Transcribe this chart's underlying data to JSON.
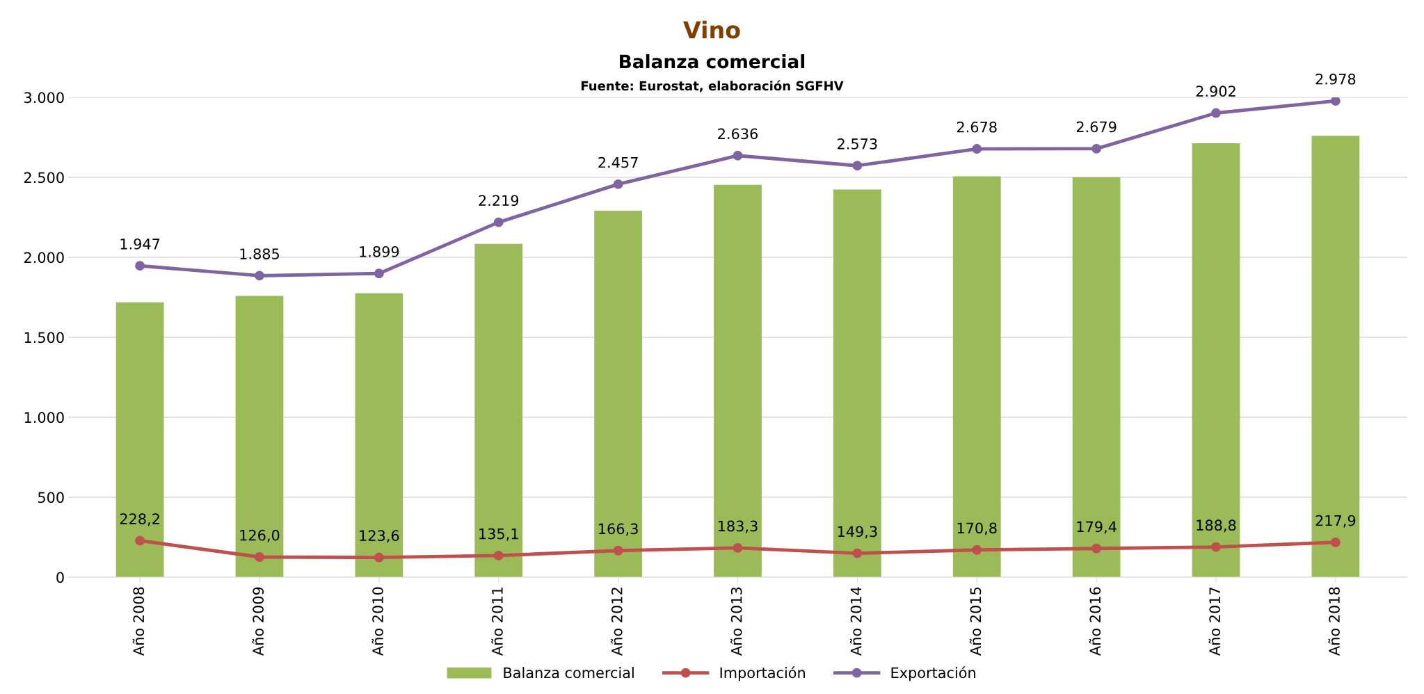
{
  "chart_data": {
    "type": "bar",
    "title": "Vino",
    "subtitle": "Balanza comercial",
    "annotations": [
      "Fuente: Eurostat, elaboración SGFHV"
    ],
    "categories": [
      "Año 2008",
      "Año 2009",
      "Año 2010",
      "Año 2011",
      "Año 2012",
      "Año 2013",
      "Año 2014",
      "Año 2015",
      "Año 2016",
      "Año 2017",
      "Año 2018"
    ],
    "series": [
      {
        "name": "Balanza comercial",
        "color": "#9bbb59",
        "values": [
          1719,
          1759,
          1775,
          2084,
          2291,
          2453,
          2424,
          2507,
          2500,
          2713,
          2760
        ]
      },
      {
        "name": "Importación",
        "type": "line",
        "color": "#c0504d",
        "marker": "circle",
        "values": [
          228.2,
          126.0,
          123.6,
          135.1,
          166.3,
          183.3,
          149.3,
          170.8,
          179.4,
          188.8,
          217.9
        ],
        "value_labels": [
          "228,2",
          "126,0",
          "123,6",
          "135,1",
          "166,3",
          "183,3",
          "149,3",
          "170,8",
          "179,4",
          "188,8",
          "217,9"
        ]
      },
      {
        "name": "Exportación",
        "type": "line",
        "color": "#8064a2",
        "marker": "circle",
        "values": [
          1947,
          1885,
          1899,
          2219,
          2457,
          2636,
          2573,
          2678,
          2679,
          2902,
          2978
        ],
        "value_labels": [
          "1.947",
          "1.885",
          "1.899",
          "2.219",
          "2.457",
          "2.636",
          "2.573",
          "2.678",
          "2.679",
          "2.902",
          "2.978"
        ]
      }
    ],
    "ylim": [
      0,
      3000
    ],
    "yticks": [
      0,
      500,
      {
        "value": 1000,
        "label": "1.000"
      },
      {
        "value": 1500,
        "label": "1.500"
      },
      {
        "value": 2000,
        "label": "2.000"
      },
      {
        "value": 2500,
        "label": "2.500"
      },
      {
        "value": 3000,
        "label": "3.000"
      }
    ],
    "grid": "y",
    "legend": "bottom"
  }
}
